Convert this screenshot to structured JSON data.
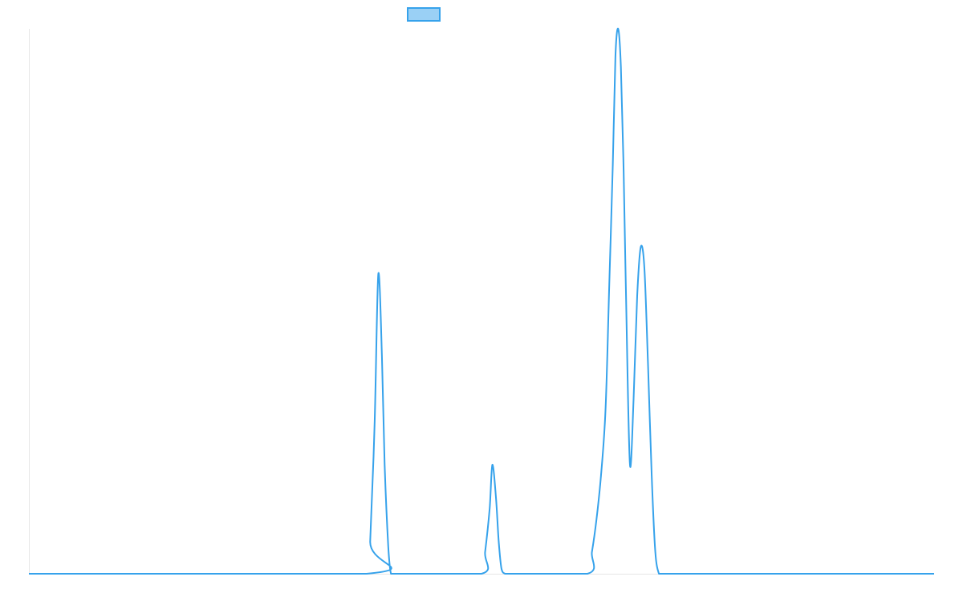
{
  "chart_data": {
    "type": "line",
    "title": "",
    "xlabel": "",
    "ylabel": "",
    "grid": false,
    "legend": {
      "position": "top-center",
      "entries": [
        ""
      ]
    },
    "xlim": [
      0,
      100
    ],
    "ylim": [
      0,
      100
    ],
    "series": [
      {
        "label": "",
        "color": "#36a2eb",
        "fill_color": "#9ad0f5",
        "x": [
          0,
          37.3,
          37.7,
          38.2,
          38.6,
          39.0,
          39.3,
          39.7,
          40.0,
          40.4,
          40.9,
          41.2,
          50.0,
          50.4,
          50.9,
          51.2,
          51.6,
          51.9,
          52.2,
          52.6,
          53.0,
          53.4,
          61.7,
          62.2,
          62.7,
          63.2,
          63.7,
          64.1,
          64.5,
          64.8,
          65.1,
          65.4,
          65.7,
          66.0,
          66.4,
          66.8,
          67.2,
          67.6,
          68.0,
          68.4,
          68.8,
          69.2,
          69.6,
          69.9,
          70.2,
          70.5,
          70.9,
          71.3,
          71.6,
          71.9,
          100
        ],
        "y": [
          0,
          0,
          6,
          28,
          55,
          40,
          20,
          5,
          0,
          0,
          0,
          0,
          0,
          4,
          12,
          20,
          14,
          6,
          1,
          0,
          0,
          0,
          0,
          4,
          10,
          18,
          30,
          52,
          75,
          95,
          100,
          93,
          74,
          48,
          20,
          32,
          51,
          60,
          56,
          38,
          18,
          4,
          0,
          0,
          0,
          0,
          0,
          0,
          0,
          0,
          0
        ]
      }
    ]
  }
}
